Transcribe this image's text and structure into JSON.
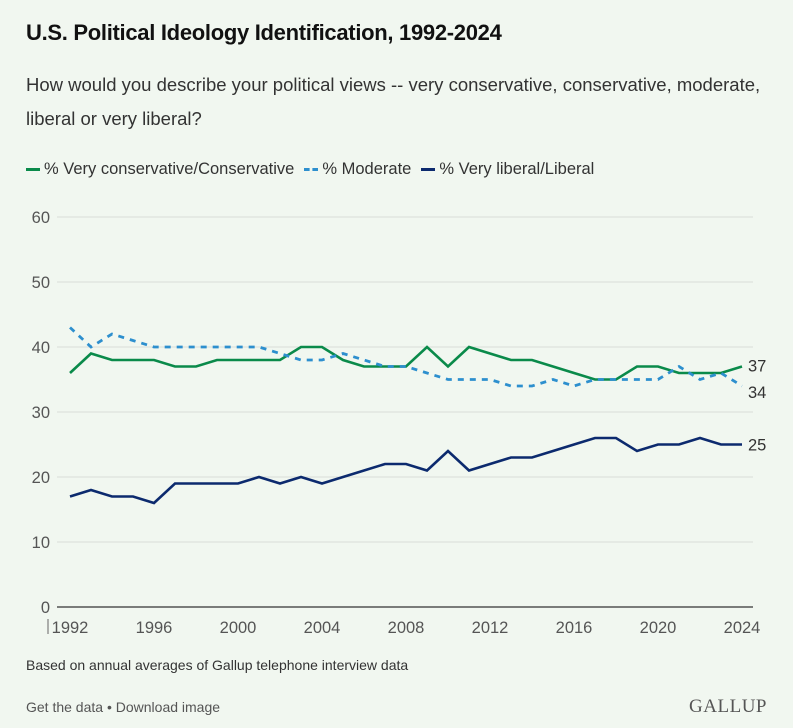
{
  "header": {
    "title": "U.S. Political Ideology Identification, 1992-2024",
    "subtitle": "How would you describe your political views -- very conservative, conservative, moderate, liberal or very liberal?"
  },
  "colors": {
    "background": "#f1f7f0",
    "conservative": "#0a8a4a",
    "moderate": "#2d8fce",
    "liberal": "#0c2a6e"
  },
  "chart_data": {
    "type": "line",
    "title": "U.S. Political Ideology Identification, 1992-2024",
    "xlabel": "",
    "ylabel": "",
    "x": [
      1992,
      1993,
      1994,
      1995,
      1996,
      1997,
      1998,
      1999,
      2000,
      2001,
      2002,
      2003,
      2004,
      2005,
      2006,
      2007,
      2008,
      2009,
      2010,
      2011,
      2012,
      2013,
      2014,
      2015,
      2016,
      2017,
      2018,
      2019,
      2020,
      2021,
      2022,
      2023,
      2024
    ],
    "xlim": [
      1992,
      2024
    ],
    "ylim": [
      0,
      60
    ],
    "x_ticks": [
      "1992",
      "1996",
      "2000",
      "2004",
      "2008",
      "2012",
      "2016",
      "2020",
      "2024"
    ],
    "y_ticks": [
      "0",
      "10",
      "20",
      "30",
      "40",
      "50",
      "60"
    ],
    "grid": true,
    "legend_position": "top-left",
    "series": [
      {
        "name": "% Very conservative/Conservative",
        "style": "solid",
        "values": [
          36,
          39,
          38,
          38,
          38,
          37,
          37,
          38,
          38,
          38,
          38,
          40,
          40,
          38,
          37,
          37,
          37,
          40,
          37,
          40,
          39,
          38,
          38,
          37,
          36,
          35,
          35,
          37,
          37,
          36,
          36,
          36,
          37
        ],
        "end_label": "37"
      },
      {
        "name": "% Moderate",
        "style": "dashed",
        "values": [
          43,
          40,
          42,
          41,
          40,
          40,
          40,
          40,
          40,
          40,
          39,
          38,
          38,
          39,
          38,
          37,
          37,
          36,
          35,
          35,
          35,
          34,
          34,
          35,
          34,
          35,
          35,
          35,
          35,
          37,
          35,
          36,
          34
        ],
        "end_label": "34"
      },
      {
        "name": "% Very liberal/Liberal",
        "style": "solid",
        "values": [
          17,
          18,
          17,
          17,
          16,
          19,
          19,
          19,
          19,
          20,
          19,
          20,
          19,
          20,
          21,
          22,
          22,
          21,
          24,
          21,
          22,
          23,
          23,
          24,
          25,
          26,
          26,
          24,
          25,
          25,
          26,
          25,
          25
        ],
        "end_label": "25"
      }
    ]
  },
  "footer": {
    "note": "Based on annual averages of Gallup telephone interview data",
    "get_data": "Get the data",
    "separator": " • ",
    "download": "Download image",
    "logo": "GALLUP"
  }
}
